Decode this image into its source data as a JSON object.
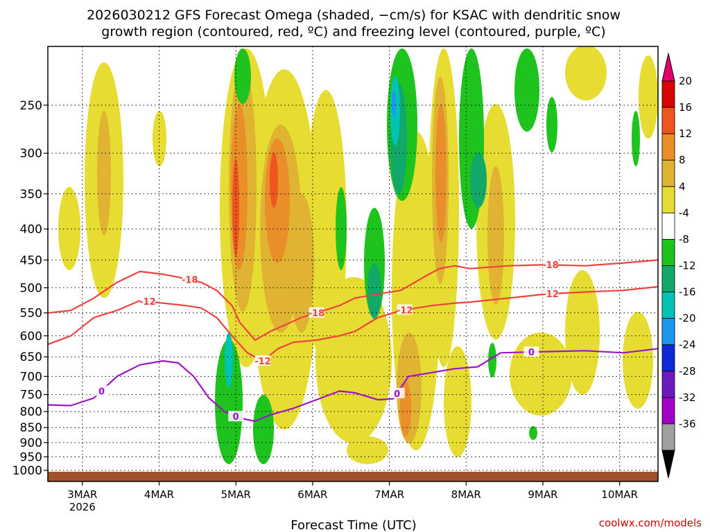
{
  "chart_data": {
    "type": "heatmap",
    "title_line1": "2026030212 GFS Forecast Omega (shaded, −cm/s) for KSAC with dendritic snow",
    "title_line2": "growth region (contoured, red, ºC) and freezing level (contoured, purple, ºC)",
    "xlabel": "Forecast Time (UTC)",
    "ylabel": "",
    "credit": "coolwx.com/models",
    "x_range_days": [
      0,
      7.95
    ],
    "x_ticks": [
      {
        "day": 0.45,
        "label": "3MAR",
        "sub": "2026"
      },
      {
        "day": 1.45,
        "label": "4MAR",
        "sub": ""
      },
      {
        "day": 2.45,
        "label": "5MAR",
        "sub": ""
      },
      {
        "day": 3.45,
        "label": "6MAR",
        "sub": ""
      },
      {
        "day": 4.45,
        "label": "7MAR",
        "sub": ""
      },
      {
        "day": 5.45,
        "label": "8MAR",
        "sub": ""
      },
      {
        "day": 6.45,
        "label": "9MAR",
        "sub": ""
      },
      {
        "day": 7.45,
        "label": "10MAR",
        "sub": ""
      }
    ],
    "y_axis": {
      "type": "log",
      "top_hpa": 200,
      "bottom_hpa": 1000
    },
    "y_ticks": [
      250,
      300,
      350,
      400,
      450,
      500,
      550,
      600,
      650,
      700,
      750,
      800,
      850,
      900,
      950,
      1000
    ],
    "colorbar": {
      "labels": [
        "20",
        "16",
        "12",
        "8",
        "4",
        "-4",
        "-8",
        "-12",
        "-16",
        "-20",
        "-24",
        "-28",
        "-32",
        "-36"
      ],
      "colors": [
        "#d90505",
        "#f0551f",
        "#ea8e2a",
        "#e0b432",
        "#e6dc32",
        "#ffffff",
        "#1ec31e",
        "#11a86a",
        "#00c3b5",
        "#1e96f0",
        "#0f28dc",
        "#6e19be",
        "#a000c8",
        "#a0a0a0"
      ],
      "top_arrow_color": "#e6006e",
      "bottom_arrow_color": "#000000"
    },
    "series": [
      {
        "name": "-18 ºC",
        "color": "#f0413c",
        "label": "-18",
        "label_days": [
          1.85,
          3.5,
          6.55
        ],
        "x": [
          0,
          0.3,
          0.6,
          0.9,
          1.2,
          1.5,
          1.8,
          2.0,
          2.2,
          2.4,
          2.5,
          2.7,
          2.9,
          3.1,
          3.3,
          3.5,
          3.8,
          4.0,
          4.3,
          4.6,
          4.9,
          5.1,
          5.3,
          5.5,
          6.0,
          6.5,
          7.0,
          7.5,
          7.95
        ],
        "y": [
          550,
          545,
          520,
          490,
          470,
          475,
          483,
          490,
          505,
          535,
          570,
          610,
          590,
          575,
          560,
          550,
          535,
          520,
          512,
          505,
          480,
          465,
          460,
          465,
          460,
          458,
          460,
          455,
          450
        ]
      },
      {
        "name": "-12 ºC",
        "color": "#f0413c",
        "label": "-12",
        "label_days": [
          1.3,
          2.8,
          4.65,
          6.55
        ],
        "x": [
          0,
          0.3,
          0.6,
          0.9,
          1.2,
          1.5,
          1.8,
          2.0,
          2.2,
          2.4,
          2.6,
          2.8,
          3.0,
          3.2,
          3.5,
          3.8,
          4.0,
          4.3,
          4.6,
          5.0,
          5.3,
          5.5,
          6.0,
          6.5,
          7.0,
          7.5,
          7.95
        ],
        "y": [
          620,
          600,
          560,
          545,
          525,
          530,
          535,
          540,
          560,
          600,
          640,
          660,
          630,
          615,
          610,
          600,
          590,
          560,
          545,
          535,
          530,
          528,
          520,
          512,
          508,
          505,
          498
        ]
      },
      {
        "name": "0 ºC (freezing level)",
        "color": "#9a14c8",
        "label": "0",
        "label_days": [
          0.7,
          2.45,
          4.55,
          6.3
        ],
        "x": [
          0,
          0.3,
          0.6,
          0.9,
          1.2,
          1.5,
          1.7,
          1.9,
          2.1,
          2.3,
          2.5,
          2.7,
          2.9,
          3.2,
          3.5,
          3.8,
          4.0,
          4.3,
          4.5,
          4.7,
          5.0,
          5.3,
          5.6,
          5.9,
          6.3,
          7.0,
          7.5,
          7.95
        ],
        "y": [
          780,
          782,
          760,
          700,
          670,
          660,
          665,
          700,
          760,
          800,
          820,
          830,
          810,
          790,
          765,
          740,
          745,
          765,
          762,
          700,
          690,
          680,
          675,
          640,
          638,
          635,
          640,
          630
        ]
      }
    ]
  }
}
